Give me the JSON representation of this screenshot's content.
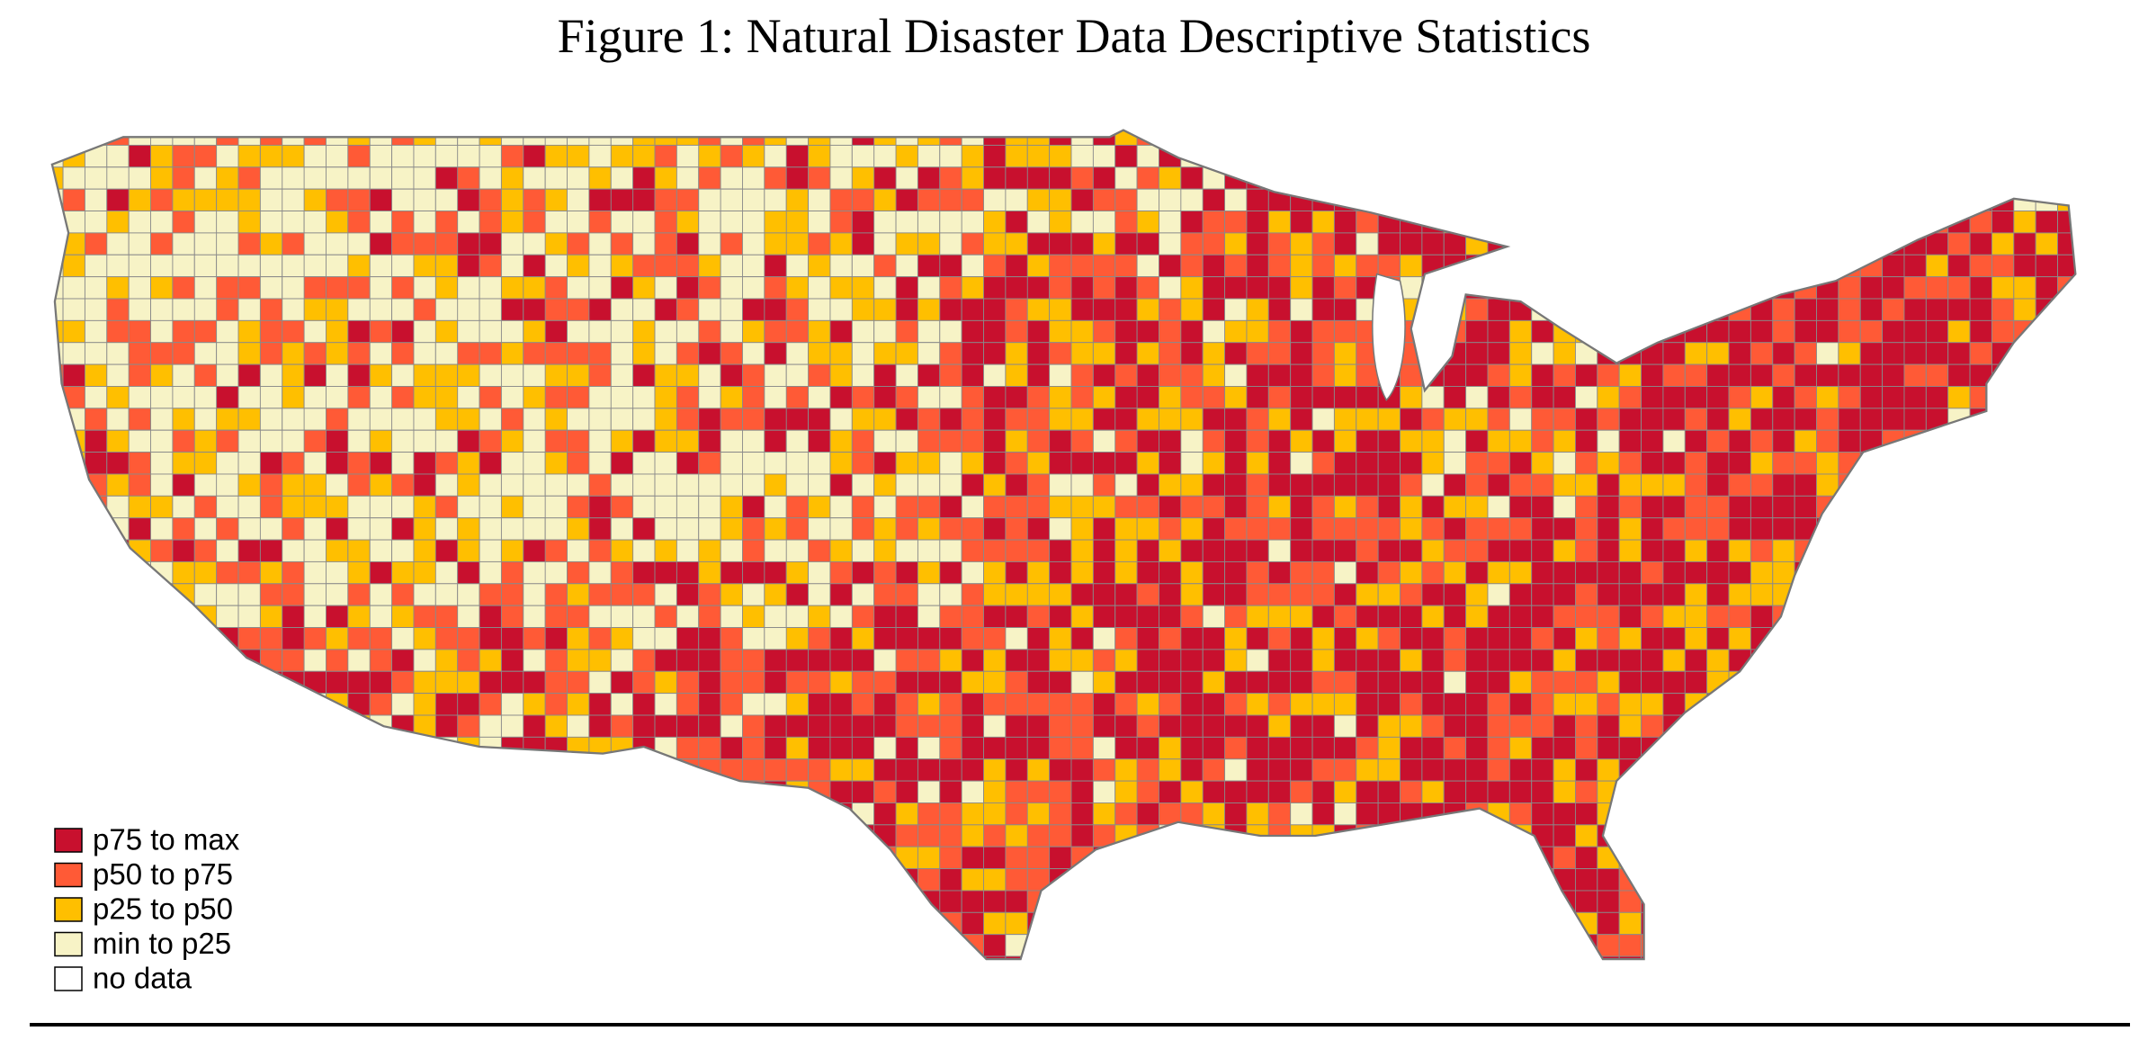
{
  "title": "Figure 1: Natural Disaster Data Descriptive Statistics",
  "legend": {
    "items": [
      {
        "label": "p75 to max",
        "color": "#c8102e"
      },
      {
        "label": "p50 to p75",
        "color": "#ff5a36"
      },
      {
        "label": "p25 to p50",
        "color": "#ffbf00"
      },
      {
        "label": "min to p25",
        "color": "#f7f3c6"
      },
      {
        "label": "no data",
        "color": "#ffffff"
      }
    ]
  }
}
